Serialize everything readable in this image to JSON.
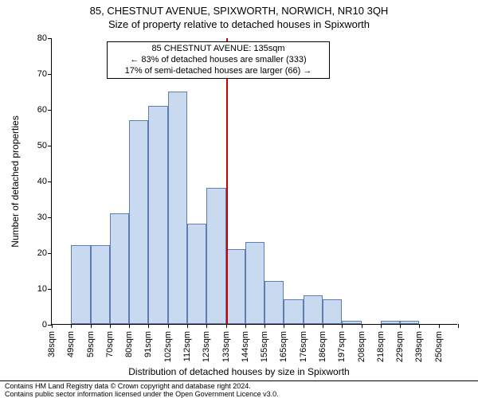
{
  "header": {
    "line1": "85, CHESTNUT AVENUE, SPIXWORTH, NORWICH, NR10 3QH",
    "line2": "Size of property relative to detached houses in Spixworth"
  },
  "axes": {
    "ylabel": "Number of detached properties",
    "xlabel": "Distribution of detached houses by size in Spixworth",
    "ylim": [
      0,
      80
    ],
    "ytick_step": 10,
    "label_fontsize": 12,
    "tick_fontsize": 11
  },
  "histogram": {
    "type": "histogram",
    "categories": [
      "38sqm",
      "49sqm",
      "59sqm",
      "70sqm",
      "80sqm",
      "91sqm",
      "102sqm",
      "112sqm",
      "123sqm",
      "133sqm",
      "144sqm",
      "155sqm",
      "165sqm",
      "176sqm",
      "186sqm",
      "197sqm",
      "208sqm",
      "218sqm",
      "229sqm",
      "239sqm",
      "250sqm"
    ],
    "values": [
      0,
      22,
      22,
      31,
      57,
      61,
      65,
      28,
      38,
      21,
      23,
      12,
      7,
      8,
      7,
      1,
      0,
      1,
      1,
      0,
      0
    ],
    "bar_fill": "#c9d9ef",
    "bar_border": "#5b7fb5",
    "bar_border_width": 1,
    "background_color": "#ffffff"
  },
  "marker": {
    "position_category_index": 9,
    "line_color": "#cc0000",
    "line_width": 2
  },
  "annotation": {
    "lines": [
      "85 CHESTNUT AVENUE: 135sqm",
      "← 83% of detached houses are smaller (333)",
      "17% of semi-detached houses are larger (66) →"
    ],
    "fontsize": 11
  },
  "footer": {
    "line1": "Contains HM Land Registry data © Crown copyright and database right 2024.",
    "line2": "Contains public sector information licensed under the Open Government Licence v3.0."
  },
  "colors": {
    "text": "#000000",
    "axis": "#000000"
  }
}
